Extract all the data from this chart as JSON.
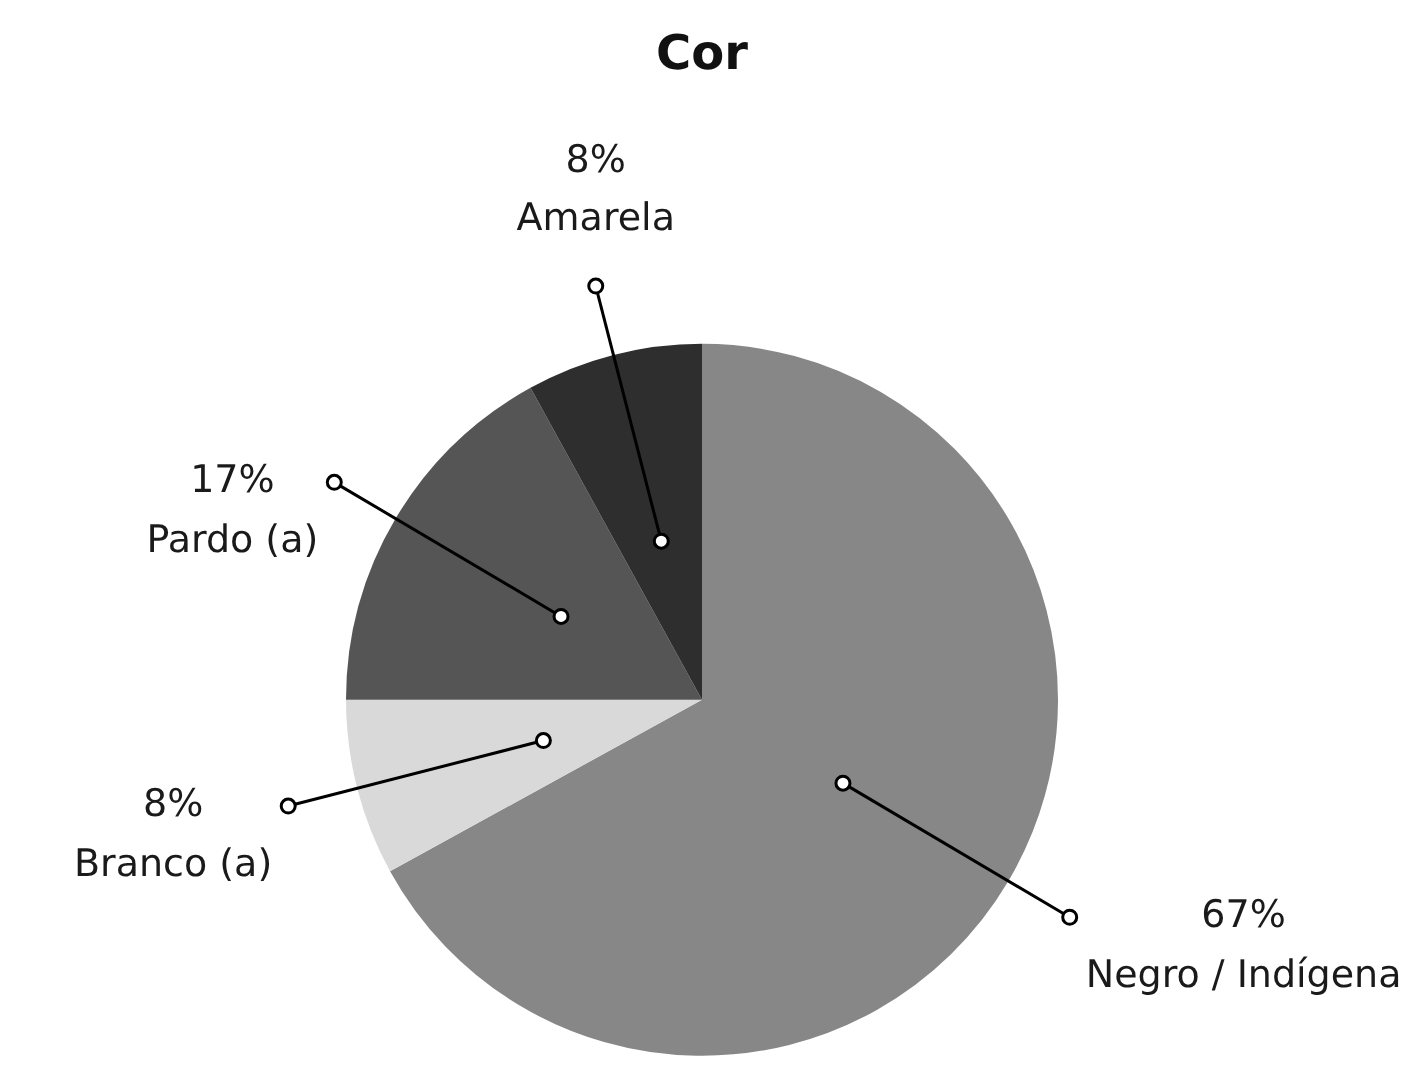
{
  "chart_data": {
    "type": "pie",
    "title": "Cor",
    "categories": [
      "Negro / Indígena",
      "Branco (a)",
      "Pardo (a)",
      "Amarela"
    ],
    "values": [
      67,
      8,
      17,
      8
    ],
    "colors": [
      "#878787",
      "#d9d9d9",
      "#555555",
      "#2e2e2e"
    ],
    "value_labels": [
      "67%",
      "8%",
      "17%",
      "8%"
    ],
    "legend": false
  }
}
